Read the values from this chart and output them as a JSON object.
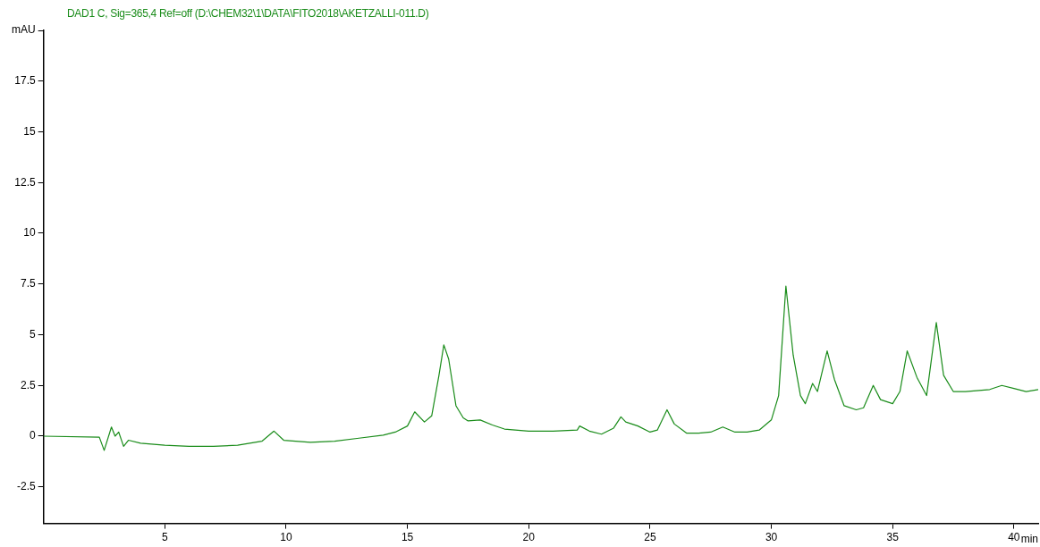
{
  "chart_data": {
    "type": "line",
    "title": "DAD1 C, Sig=365,4 Ref=off (D:\\CHEM32\\1\\DATA\\FITO2018\\AKETZALLI-011.D)",
    "xlabel": "min",
    "xlim": [
      0,
      41
    ],
    "xticks": [
      5,
      10,
      15,
      20,
      25,
      30,
      35,
      40
    ],
    "ylim": [
      -4.3,
      20
    ],
    "yticks": [
      -2.5,
      0,
      2.5,
      5,
      7.5,
      10,
      12.5,
      15,
      17.5,
      {
        "value": 20,
        "label": "mAU"
      }
    ],
    "grid": false,
    "legend": false,
    "marker": "none",
    "line_style": "solid",
    "series": [
      {
        "color": "#1a8c1a",
        "x": [
          0,
          2.3,
          2.5,
          2.8,
          2.95,
          3.1,
          3.3,
          3.5,
          4,
          5,
          6,
          7,
          8,
          9,
          9.5,
          9.9,
          11,
          12,
          13,
          14,
          14.5,
          15,
          15.3,
          15.7,
          16,
          16.3,
          16.5,
          16.7,
          17,
          17.3,
          17.5,
          18,
          18.5,
          19,
          20,
          21,
          22,
          22.1,
          22.5,
          23,
          23.5,
          23.8,
          24,
          24.5,
          25,
          25.3,
          25.7,
          26,
          26.5,
          27,
          27.5,
          28,
          28.5,
          29,
          29.5,
          30,
          30.3,
          30.6,
          30.9,
          31.2,
          31.4,
          31.7,
          31.9,
          32.3,
          32.6,
          33,
          33.5,
          33.8,
          34.2,
          34.5,
          35,
          35.3,
          35.6,
          36,
          36.4,
          36.8,
          37.1,
          37.5,
          38,
          39,
          39.5,
          40,
          40.5,
          41
        ],
        "values": [
          0,
          -0.05,
          -0.7,
          0.45,
          0,
          0.2,
          -0.5,
          -0.2,
          -0.35,
          -0.45,
          -0.5,
          -0.5,
          -0.45,
          -0.25,
          0.25,
          -0.2,
          -0.3,
          -0.25,
          -0.1,
          0.05,
          0.2,
          0.5,
          1.2,
          0.7,
          1,
          3,
          4.5,
          3.8,
          1.5,
          0.9,
          0.75,
          0.8,
          0.55,
          0.35,
          0.25,
          0.25,
          0.3,
          0.5,
          0.25,
          0.1,
          0.4,
          0.95,
          0.7,
          0.5,
          0.2,
          0.3,
          1.3,
          0.6,
          0.15,
          0.15,
          0.2,
          0.45,
          0.2,
          0.2,
          0.3,
          0.8,
          2,
          7.4,
          4,
          2,
          1.6,
          2.6,
          2.2,
          4.2,
          2.8,
          1.5,
          1.3,
          1.4,
          2.5,
          1.8,
          1.6,
          2.2,
          4.2,
          2.9,
          2,
          5.6,
          3,
          2.2,
          2.2,
          2.3,
          2.5,
          2.35,
          2.2,
          2.3
        ]
      }
    ]
  }
}
